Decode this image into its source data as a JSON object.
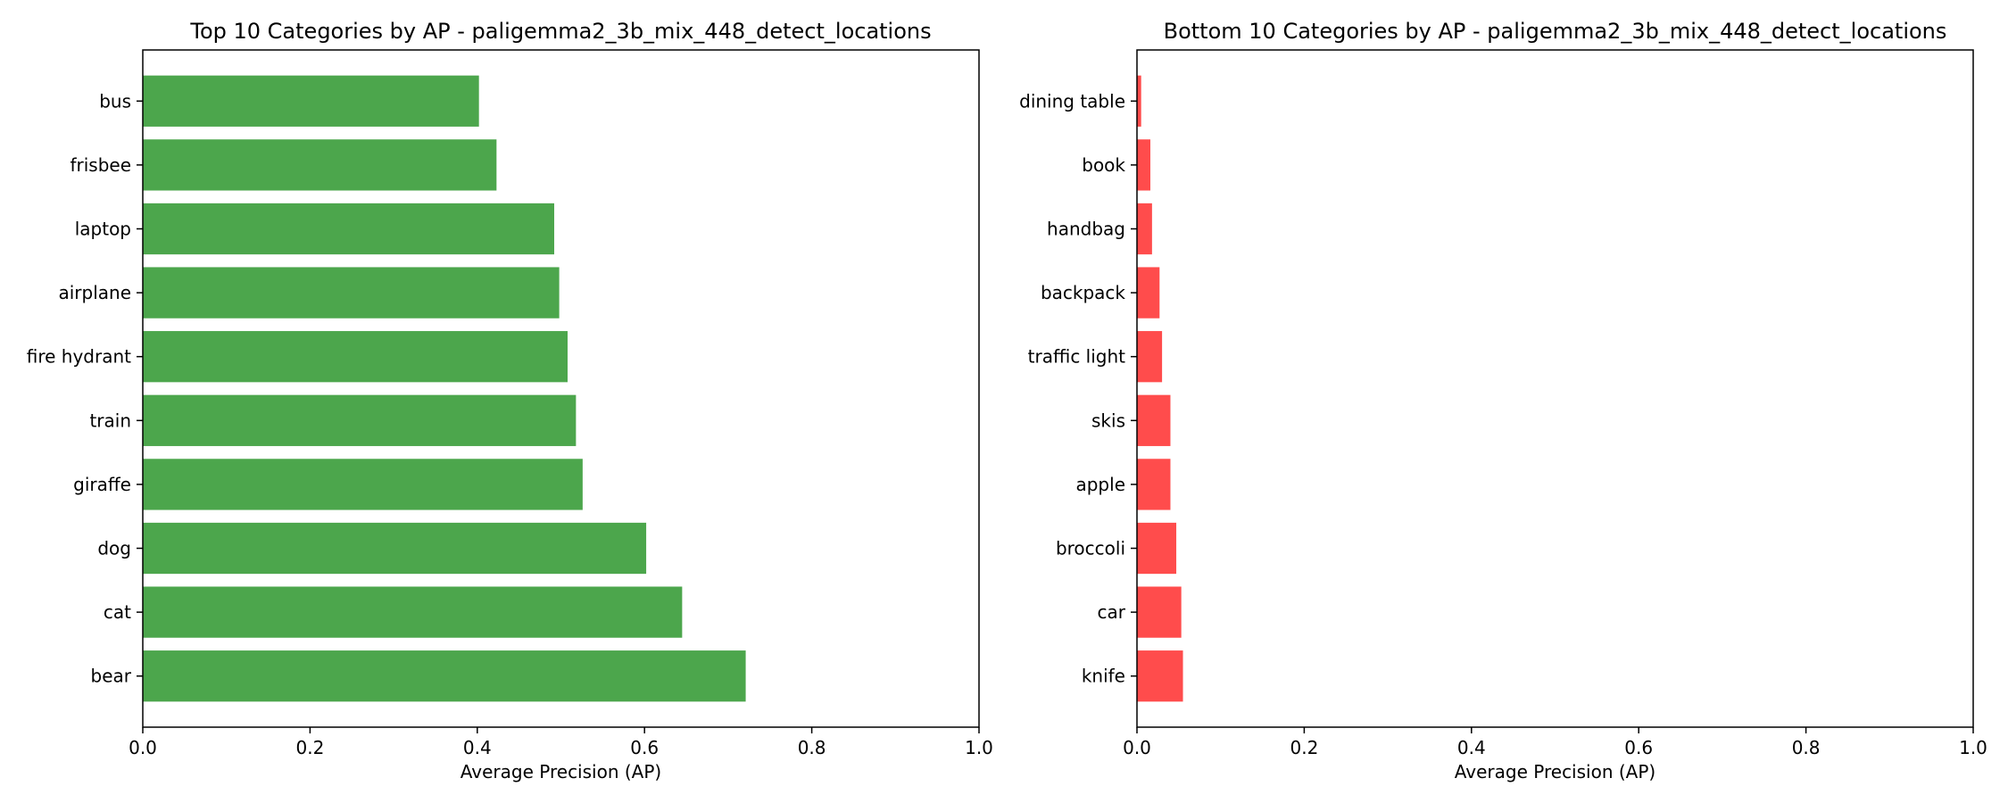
{
  "chart_data": [
    {
      "type": "bar",
      "orientation": "horizontal",
      "title": "Top 10 Categories by AP - paligemma2_3b_mix_448_detect_locations",
      "xlabel": "Average Precision (AP)",
      "ylabel": "",
      "xlim": [
        0,
        1.0
      ],
      "xticks": [
        "0.0",
        "0.2",
        "0.4",
        "0.6",
        "0.8",
        "1.0"
      ],
      "grid": false,
      "color": "#4ca64c",
      "categories": [
        "bus",
        "frisbee",
        "laptop",
        "airplane",
        "fire hydrant",
        "train",
        "giraffe",
        "dog",
        "cat",
        "bear"
      ],
      "values": [
        0.402,
        0.423,
        0.492,
        0.498,
        0.508,
        0.518,
        0.526,
        0.602,
        0.645,
        0.721
      ]
    },
    {
      "type": "bar",
      "orientation": "horizontal",
      "title": "Bottom 10 Categories by AP - paligemma2_3b_mix_448_detect_locations",
      "xlabel": "Average Precision (AP)",
      "ylabel": "",
      "xlim": [
        0,
        1.0
      ],
      "xticks": [
        "0.0",
        "0.2",
        "0.4",
        "0.6",
        "0.8",
        "1.0"
      ],
      "grid": false,
      "color": "#ff4c4c",
      "categories": [
        "dining table",
        "book",
        "handbag",
        "backpack",
        "traffic light",
        "skis",
        "apple",
        "broccoli",
        "car",
        "knife"
      ],
      "values": [
        0.005,
        0.016,
        0.018,
        0.027,
        0.03,
        0.04,
        0.04,
        0.047,
        0.053,
        0.055
      ]
    }
  ]
}
